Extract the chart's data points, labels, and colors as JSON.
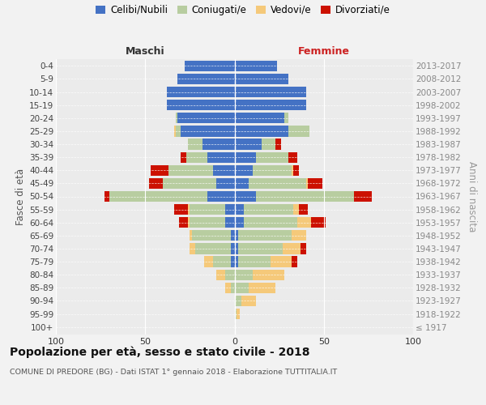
{
  "age_groups": [
    "100+",
    "95-99",
    "90-94",
    "85-89",
    "80-84",
    "75-79",
    "70-74",
    "65-69",
    "60-64",
    "55-59",
    "50-54",
    "45-49",
    "40-44",
    "35-39",
    "30-34",
    "25-29",
    "20-24",
    "15-19",
    "10-14",
    "5-9",
    "0-4"
  ],
  "birth_years": [
    "≤ 1917",
    "1918-1922",
    "1923-1927",
    "1928-1932",
    "1933-1937",
    "1938-1942",
    "1943-1947",
    "1948-1952",
    "1953-1957",
    "1958-1962",
    "1963-1967",
    "1968-1972",
    "1973-1977",
    "1978-1982",
    "1983-1987",
    "1988-1992",
    "1993-1997",
    "1998-2002",
    "2003-2007",
    "2008-2012",
    "2013-2017"
  ],
  "colors": {
    "celibi": "#4472c4",
    "coniugati": "#b8cda0",
    "vedovi": "#f5c97a",
    "divorziati": "#cc1100"
  },
  "males_celibi": [
    0,
    0,
    0,
    0,
    0,
    2,
    2,
    2,
    5,
    5,
    15,
    10,
    12,
    15,
    18,
    30,
    32,
    38,
    38,
    32,
    28
  ],
  "males_coniugati": [
    0,
    0,
    0,
    2,
    5,
    10,
    20,
    22,
    20,
    20,
    55,
    30,
    25,
    12,
    8,
    3,
    1,
    0,
    0,
    0,
    0
  ],
  "males_vedovi": [
    0,
    0,
    0,
    3,
    5,
    5,
    3,
    1,
    1,
    1,
    0,
    0,
    0,
    0,
    0,
    1,
    0,
    0,
    0,
    0,
    0
  ],
  "males_divorziati": [
    0,
    0,
    0,
    0,
    0,
    0,
    0,
    0,
    5,
    8,
    3,
    8,
    10,
    3,
    0,
    0,
    0,
    0,
    0,
    0,
    0
  ],
  "females_nubili": [
    0,
    0,
    0,
    0,
    0,
    2,
    2,
    2,
    5,
    5,
    12,
    8,
    10,
    12,
    15,
    30,
    28,
    40,
    40,
    30,
    24
  ],
  "females_coniugati": [
    0,
    1,
    4,
    8,
    10,
    18,
    25,
    30,
    30,
    28,
    55,
    32,
    22,
    18,
    8,
    12,
    2,
    0,
    0,
    0,
    0
  ],
  "females_vedovi": [
    0,
    2,
    8,
    15,
    18,
    12,
    10,
    8,
    8,
    3,
    0,
    1,
    1,
    0,
    0,
    0,
    0,
    0,
    0,
    0,
    0
  ],
  "females_divorziati": [
    0,
    0,
    0,
    0,
    0,
    3,
    3,
    0,
    8,
    5,
    10,
    8,
    3,
    5,
    3,
    0,
    0,
    0,
    0,
    0,
    0
  ],
  "xlim": 100,
  "title": "Popolazione per età, sesso e stato civile - 2018",
  "subtitle": "COMUNE DI PREDORE (BG) - Dati ISTAT 1° gennaio 2018 - Elaborazione TUTTITALIA.IT",
  "ylabel_left": "Fasce di età",
  "ylabel_right": "Anni di nascita",
  "header_left": "Maschi",
  "header_right": "Femmine",
  "bg_color": "#f2f2f2"
}
